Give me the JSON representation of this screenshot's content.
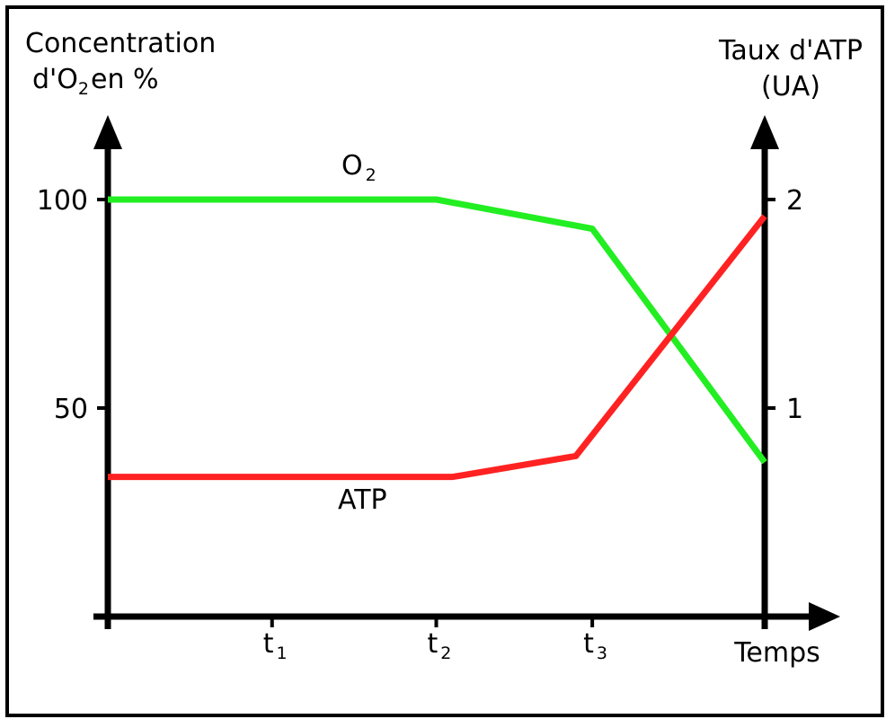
{
  "chart_data": {
    "type": "line",
    "title": "",
    "y_left_label": "Concentration d'O₂ en %",
    "y_left_label_line1": "Concentration",
    "y_left_label_line2_a": "d'O",
    "y_left_label_line2_sub": "2",
    "y_left_label_line2_b": "en %",
    "y_left_ticks": [
      "100",
      "50"
    ],
    "y_left_range": [
      0,
      100
    ],
    "y_right_label_line1": "Taux d'ATP",
    "y_right_label_line2": "(UA)",
    "y_right_ticks": [
      "2",
      "1"
    ],
    "y_right_range": [
      0,
      2
    ],
    "x_label": "Temps",
    "x_ticks": [
      {
        "main": "t",
        "sub": "1"
      },
      {
        "main": "t",
        "sub": "2"
      },
      {
        "main": "t",
        "sub": "3"
      }
    ],
    "x_range": [
      0,
      4
    ],
    "grid": false,
    "series": [
      {
        "name": "O2",
        "label_main": "O",
        "label_sub": "2",
        "color": "#22ee22",
        "axis": "left",
        "x": [
          0,
          2,
          2.95,
          4
        ],
        "y": [
          100,
          100,
          93,
          37
        ]
      },
      {
        "name": "ATP",
        "label_main": "ATP",
        "color": "#ff2222",
        "axis": "right",
        "x": [
          0,
          2.1,
          2.85,
          4
        ],
        "y": [
          0.67,
          0.67,
          0.77,
          1.92
        ]
      }
    ]
  }
}
